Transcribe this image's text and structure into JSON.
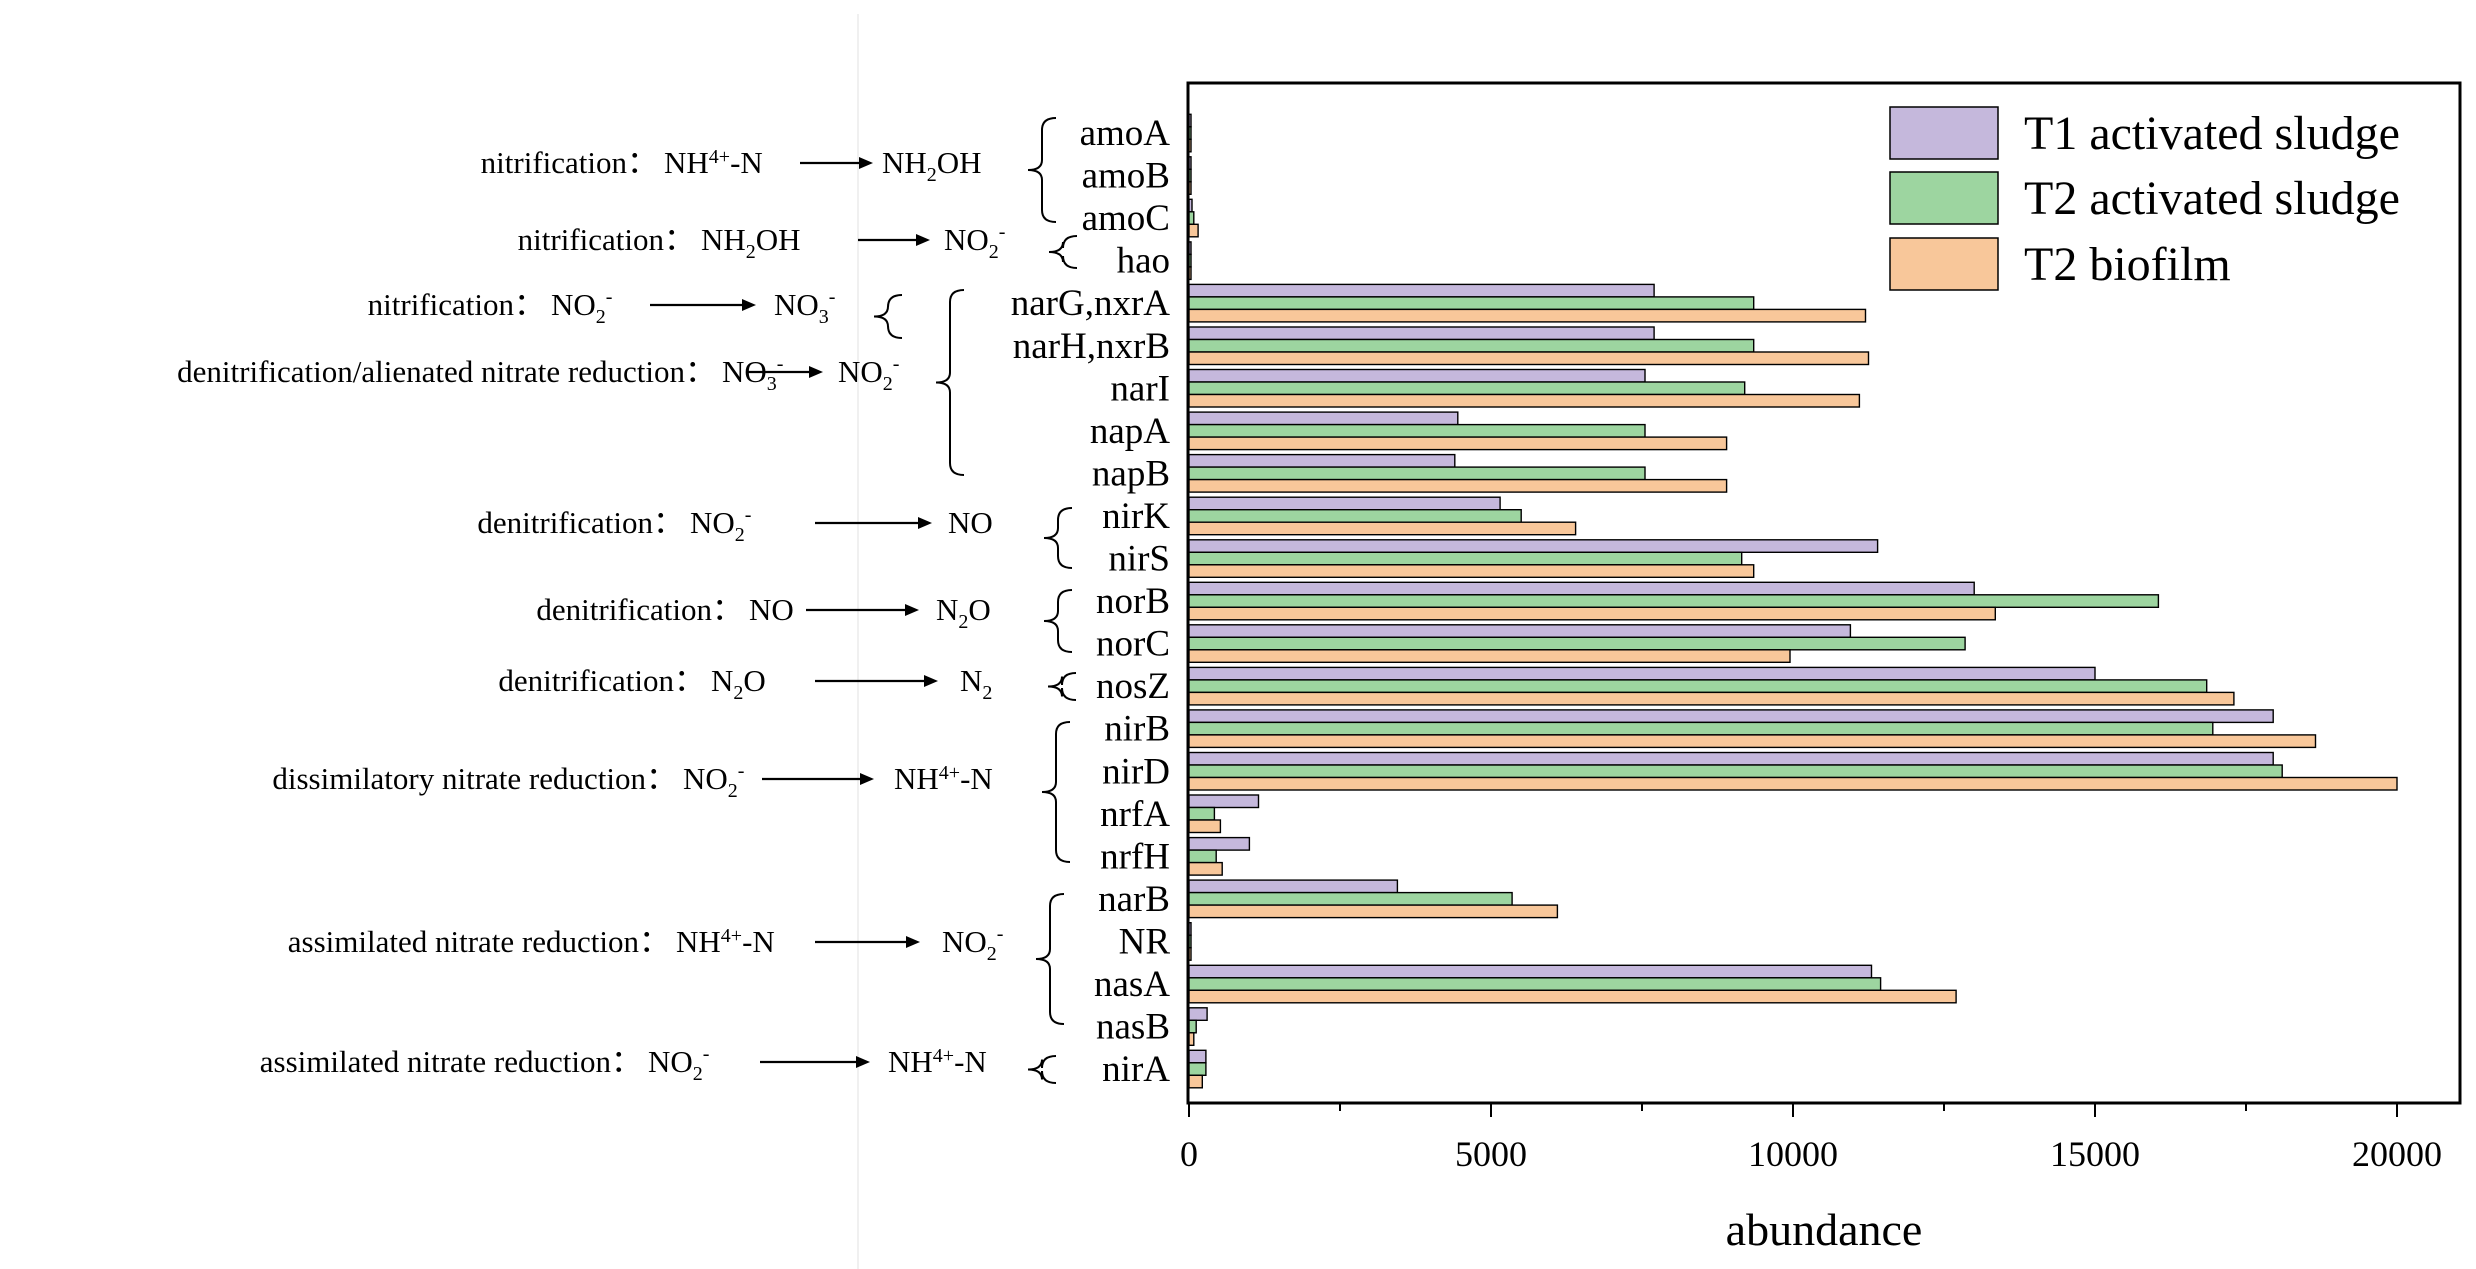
{
  "chart_data": {
    "type": "bar",
    "orientation": "horizontal",
    "title": "",
    "xlabel": "abundance",
    "ylabel": "",
    "xlim": [
      0,
      21000
    ],
    "x_ticks": [
      0,
      5000,
      10000,
      15000,
      20000
    ],
    "x_tick_labels": [
      "0",
      "5000",
      "10000",
      "15000",
      "20000"
    ],
    "legend_position": "top-right",
    "categories": [
      "amoA",
      "amoB",
      "amoC",
      "hao",
      "narG,nxrA",
      "narH,nxrB",
      "narI",
      "napA",
      "napB",
      "nirK",
      "nirS",
      "norB",
      "norC",
      "nosZ",
      "nirB",
      "nirD",
      "nrfA",
      "nrfH",
      "narB",
      "NR",
      "nasA",
      "nasB",
      "nirA"
    ],
    "series": [
      {
        "name": "T1 activated sludge",
        "color": "#c5b8dc",
        "values": [
          20,
          15,
          50,
          10,
          7700,
          7700,
          7550,
          4450,
          4400,
          5150,
          11400,
          13000,
          10950,
          15000,
          17950,
          17950,
          1150,
          1000,
          3450,
          10,
          11300,
          300,
          280
        ]
      },
      {
        "name": "T2 activated sludge",
        "color": "#9dd5a0",
        "values": [
          15,
          10,
          80,
          10,
          9350,
          9350,
          9200,
          7550,
          7550,
          5500,
          9150,
          16050,
          12850,
          16850,
          16950,
          18100,
          420,
          450,
          5350,
          10,
          11450,
          120,
          280
        ]
      },
      {
        "name": "T2 biofilm",
        "color": "#f8c79a",
        "values": [
          30,
          25,
          150,
          15,
          11200,
          11250,
          11100,
          8900,
          8900,
          6400,
          9350,
          13350,
          9950,
          17300,
          18650,
          20000,
          520,
          550,
          6100,
          10,
          12700,
          80,
          220
        ]
      }
    ],
    "pathways": [
      {
        "label": "nitrification：",
        "from": "NH",
        "from_sup": "4",
        "from_sup_mark": "+",
        "from_tail": "-N",
        "to": "NH",
        "to_sub": "2",
        "to_tail": "OH"
      },
      {
        "label": "nitrification：",
        "from": "NH",
        "from_sub": "2",
        "from_tail": "OH",
        "to": "NO",
        "to_sub": "2",
        "to_sup": "-"
      },
      {
        "label": "nitrification：",
        "from": "NO",
        "from_sub": "2",
        "from_sup": "-",
        "to": "NO",
        "to_sub": "3",
        "to_sup": "-"
      },
      {
        "label": "denitrification/alienated nitrate reduction：",
        "from": "NO",
        "from_sub": "3",
        "from_sup": "-",
        "to": "NO",
        "to_sub": "2",
        "to_sup": "-"
      },
      {
        "label": "denitrification：",
        "from": "NO",
        "from_sub": "2",
        "from_sup": "-",
        "to": "NO"
      },
      {
        "label": "denitrification：",
        "from": "NO",
        "to": "N",
        "to_sub": "2",
        "to_tail": "O"
      },
      {
        "label": "denitrification：",
        "from": "N",
        "from_sub": "2",
        "from_tail": "O",
        "to": "N",
        "to_sub": "2"
      },
      {
        "label": "dissimilatory nitrate reduction：",
        "from": "NO",
        "from_sub": "2",
        "from_sup": "-",
        "to": "NH",
        "to_sup": "4",
        "to_sup_mark": "+",
        "to_tail": "-N"
      },
      {
        "label": "assimilated nitrate reduction：",
        "from": "NH",
        "from_sup": "4",
        "from_sup_mark": "+",
        "from_tail": "-N",
        "to": "NO",
        "to_sub": "2",
        "to_sup": "-"
      },
      {
        "label": "assimilated nitrate reduction：",
        "from": "NO",
        "from_sub": "2",
        "from_sup": "-",
        "to": "NH",
        "to_sup": "4",
        "to_sup_mark": "+",
        "to_tail": "-N"
      }
    ]
  }
}
